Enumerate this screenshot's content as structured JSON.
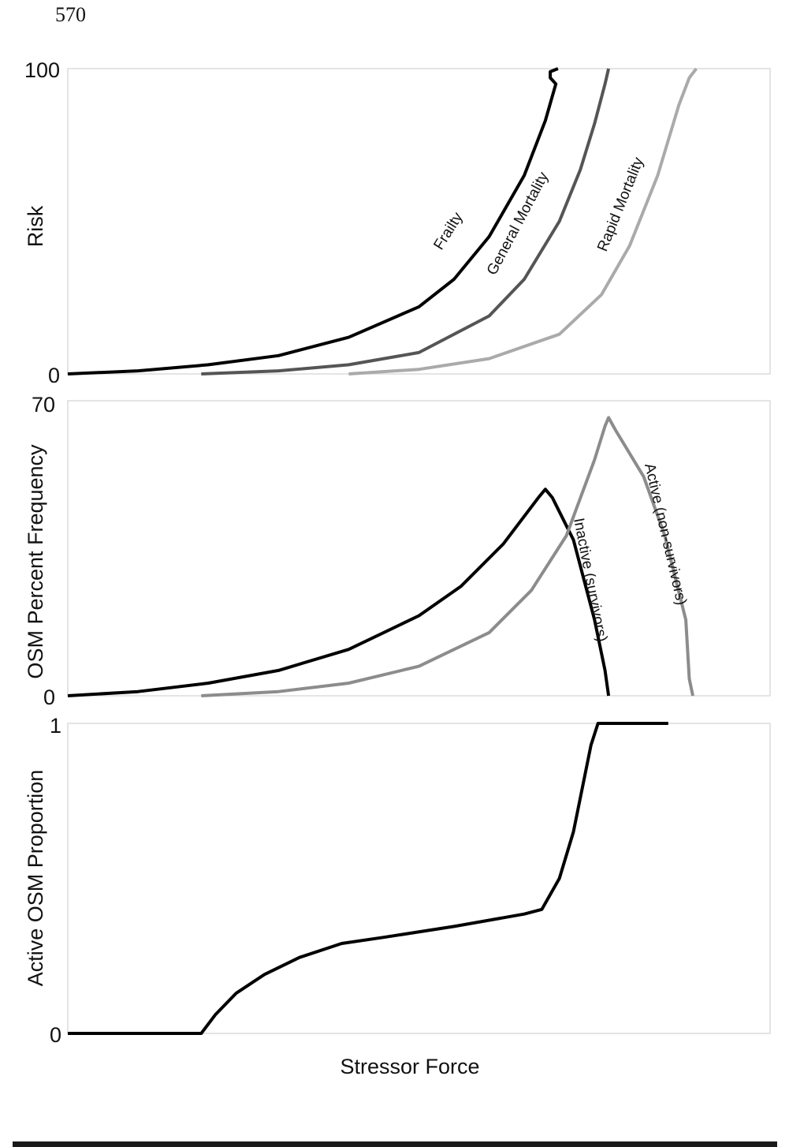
{
  "page": {
    "number": "570"
  },
  "figure": {
    "x_label": "Stressor Force",
    "panels": [
      {
        "id": "risk",
        "y_label": "Risk",
        "y_min_label": "0",
        "y_max_label": "100"
      },
      {
        "id": "osm-frequency",
        "y_label": "OSM Percent Frequency",
        "y_min_label": "0",
        "y_max_label": "70"
      },
      {
        "id": "active-proportion",
        "y_label": "Active OSM Proportion",
        "y_min_label": "0",
        "y_max_label": "1"
      }
    ]
  },
  "chart_data": [
    {
      "type": "line",
      "title": "",
      "xlabel": "Stressor Force",
      "ylabel": "Risk",
      "xlim": [
        0,
        100
      ],
      "ylim": [
        0,
        100
      ],
      "grid": false,
      "series": [
        {
          "name": "Frailty",
          "color": "#000000",
          "x": [
            0,
            10,
            20,
            30,
            40,
            50,
            55,
            60,
            65,
            68,
            69.5,
            68.7,
            68.7,
            68.7,
            69.8
          ],
          "y": [
            0,
            1,
            3,
            6,
            12,
            22,
            31,
            45,
            65,
            83,
            95,
            97,
            98,
            99,
            100
          ],
          "label_text": "Frailty"
        },
        {
          "name": "General Mortality",
          "color": "#555555",
          "x": [
            19,
            30,
            40,
            50,
            60,
            65,
            70,
            73,
            75,
            76.5,
            77
          ],
          "y": [
            0,
            1,
            3,
            7,
            19,
            31,
            50,
            67,
            82,
            95,
            100
          ],
          "label_text": "General Mortality"
        },
        {
          "name": "Rapid Mortality",
          "color": "#aaaaaa",
          "x": [
            40,
            50,
            60,
            70,
            76,
            80,
            84,
            87,
            88.5,
            89.5
          ],
          "y": [
            0,
            1.5,
            5,
            13,
            26,
            42,
            65,
            88,
            97,
            100
          ],
          "label_text": "Rapid Mortality"
        }
      ]
    },
    {
      "type": "line",
      "title": "",
      "xlabel": "Stressor Force",
      "ylabel": "OSM Percent Frequency",
      "xlim": [
        0,
        100
      ],
      "ylim": [
        0,
        70
      ],
      "grid": false,
      "series": [
        {
          "name": "Inactive (survivors)",
          "color": "#000000",
          "x": [
            0,
            10,
            20,
            30,
            40,
            50,
            56,
            62,
            67,
            68,
            69,
            72,
            75,
            76.5,
            77
          ],
          "y": [
            0,
            1,
            3,
            6,
            11,
            19,
            26,
            36,
            47,
            49,
            47,
            37,
            18,
            6,
            0
          ],
          "label_text": "Inactive (survivors)"
        },
        {
          "name": "Active (non-survivors)",
          "color": "#8c8c8c",
          "x": [
            19,
            30,
            40,
            50,
            60,
            66,
            71,
            75,
            76.5,
            77,
            78,
            82,
            85,
            88,
            88.5,
            89
          ],
          "y": [
            0,
            1,
            3,
            7,
            15,
            25,
            38,
            56,
            64,
            66,
            63,
            52,
            38,
            18,
            4,
            0
          ],
          "label_text": "Active (non-survivors)"
        }
      ]
    },
    {
      "type": "line",
      "title": "",
      "xlabel": "Stressor Force",
      "ylabel": "Active OSM Proportion",
      "xlim": [
        0,
        100
      ],
      "ylim": [
        0,
        1
      ],
      "grid": false,
      "series": [
        {
          "name": "Active OSM Proportion",
          "color": "#000000",
          "x": [
            0,
            19,
            21,
            24,
            28,
            33,
            39,
            45,
            55,
            65,
            67.5,
            70,
            72,
            74.5,
            75.5,
            85.5
          ],
          "y": [
            0,
            0,
            0.06,
            0.13,
            0.19,
            0.245,
            0.29,
            0.31,
            0.345,
            0.385,
            0.4,
            0.5,
            0.65,
            0.93,
            1.0,
            1.0
          ]
        }
      ]
    }
  ]
}
